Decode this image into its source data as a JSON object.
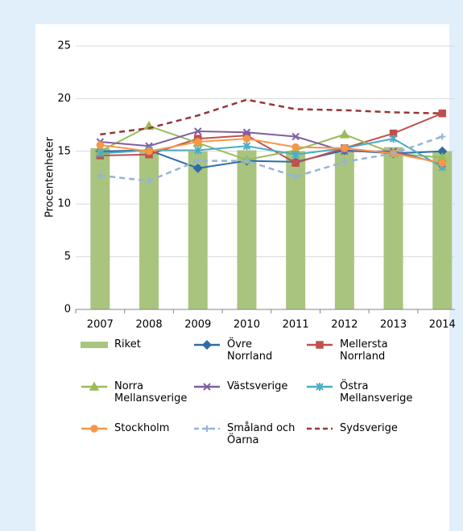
{
  "chart_data": {
    "type": "combo",
    "ylabel": "Procentenheter",
    "categories": [
      "2007",
      "2008",
      "2009",
      "2010",
      "2011",
      "2012",
      "2013",
      "2014"
    ],
    "ylim": [
      0,
      25
    ],
    "yticks": [
      0,
      5,
      10,
      15,
      20,
      25
    ],
    "grid": true,
    "series": [
      {
        "name": "Riket",
        "type": "bar",
        "color": "#a9c47f",
        "values": [
          15.3,
          15.0,
          15.0,
          15.1,
          15.0,
          15.1,
          15.4,
          15.0
        ]
      },
      {
        "name": "Övre Norrland",
        "type": "line",
        "marker": "diamond",
        "color": "#2e6ca4",
        "values": [
          15.0,
          15.1,
          13.4,
          14.1,
          14.0,
          15.1,
          14.8,
          15.0
        ]
      },
      {
        "name": "Mellersta Norrland",
        "type": "line",
        "marker": "square",
        "color": "#c0504d",
        "values": [
          14.6,
          14.7,
          16.2,
          16.5,
          13.9,
          15.3,
          16.7,
          18.6
        ]
      },
      {
        "name": "Norra Mellansverige",
        "type": "line",
        "marker": "triangle",
        "color": "#9bbb59",
        "values": [
          15.0,
          17.4,
          15.8,
          14.2,
          15.1,
          16.6,
          14.8,
          14.4
        ]
      },
      {
        "name": "Västsverige",
        "type": "line",
        "marker": "x",
        "color": "#7f5fa0",
        "values": [
          15.9,
          15.5,
          16.9,
          16.8,
          16.4,
          15.0,
          15.0,
          13.8
        ]
      },
      {
        "name": "Östra Mellansverige",
        "type": "line",
        "marker": "star",
        "color": "#4bacc6",
        "values": [
          14.8,
          15.1,
          15.1,
          15.5,
          14.7,
          15.3,
          16.2,
          13.5
        ]
      },
      {
        "name": "Stockholm",
        "type": "line",
        "marker": "circle",
        "color": "#f79646",
        "values": [
          15.6,
          15.0,
          15.9,
          16.2,
          15.4,
          15.3,
          14.8,
          13.9
        ]
      },
      {
        "name": "Småland och Öarna",
        "type": "line",
        "marker": "plus",
        "dashed": true,
        "color": "#95b3d7",
        "values": [
          12.7,
          12.2,
          14.1,
          14.1,
          12.6,
          14.0,
          14.8,
          16.4
        ]
      },
      {
        "name": "Sydsverige",
        "type": "line",
        "marker": "none",
        "dashed": true,
        "color": "#953735",
        "values": [
          16.6,
          17.2,
          18.4,
          19.9,
          19.0,
          18.9,
          18.7,
          18.6
        ]
      }
    ]
  }
}
